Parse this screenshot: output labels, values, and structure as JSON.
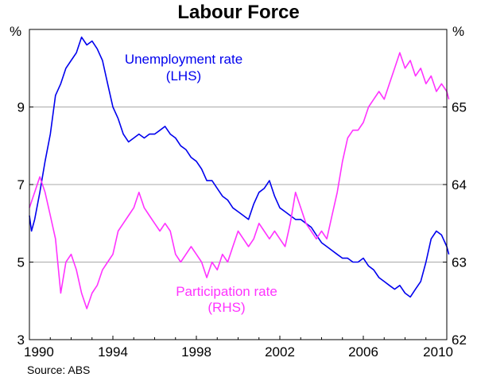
{
  "title": "Labour Force",
  "left_unit": "%",
  "right_unit": "%",
  "source": "Source: ABS",
  "chart_data": {
    "type": "line",
    "title": "Labour Force",
    "xlim": [
      1990,
      2010
    ],
    "x_ticks": [
      "1990",
      "1994",
      "1998",
      "2002",
      "2006",
      "2010"
    ],
    "y_left": {
      "ticks": [
        "3",
        "5",
        "7",
        "9"
      ],
      "ylim": [
        3,
        11
      ],
      "unit": "%"
    },
    "y_right": {
      "ticks": [
        "62",
        "63",
        "64",
        "65"
      ],
      "ylim": [
        62,
        66
      ],
      "unit": "%"
    },
    "grid": true,
    "source": "Source: ABS",
    "series": [
      {
        "name": "Unemployment rate",
        "axis_label": "(LHS)",
        "axis": "left",
        "color": "#0000ee",
        "points": [
          [
            1990.0,
            6.2
          ],
          [
            1990.1,
            5.8
          ],
          [
            1990.25,
            6.1
          ],
          [
            1990.5,
            6.8
          ],
          [
            1990.75,
            7.6
          ],
          [
            1991.0,
            8.3
          ],
          [
            1991.25,
            9.3
          ],
          [
            1991.5,
            9.6
          ],
          [
            1991.75,
            10.0
          ],
          [
            1992.0,
            10.2
          ],
          [
            1992.25,
            10.4
          ],
          [
            1992.5,
            10.8
          ],
          [
            1992.75,
            10.6
          ],
          [
            1993.0,
            10.7
          ],
          [
            1993.25,
            10.5
          ],
          [
            1993.5,
            10.2
          ],
          [
            1993.75,
            9.6
          ],
          [
            1994.0,
            9.0
          ],
          [
            1994.25,
            8.7
          ],
          [
            1994.5,
            8.3
          ],
          [
            1994.75,
            8.1
          ],
          [
            1995.0,
            8.2
          ],
          [
            1995.25,
            8.3
          ],
          [
            1995.5,
            8.2
          ],
          [
            1995.75,
            8.3
          ],
          [
            1996.0,
            8.3
          ],
          [
            1996.25,
            8.4
          ],
          [
            1996.5,
            8.5
          ],
          [
            1996.75,
            8.3
          ],
          [
            1997.0,
            8.2
          ],
          [
            1997.25,
            8.0
          ],
          [
            1997.5,
            7.9
          ],
          [
            1997.75,
            7.7
          ],
          [
            1998.0,
            7.6
          ],
          [
            1998.25,
            7.4
          ],
          [
            1998.5,
            7.1
          ],
          [
            1998.75,
            7.1
          ],
          [
            1999.0,
            6.9
          ],
          [
            1999.25,
            6.7
          ],
          [
            1999.5,
            6.6
          ],
          [
            1999.75,
            6.4
          ],
          [
            2000.0,
            6.3
          ],
          [
            2000.25,
            6.2
          ],
          [
            2000.5,
            6.1
          ],
          [
            2000.75,
            6.5
          ],
          [
            2001.0,
            6.8
          ],
          [
            2001.25,
            6.9
          ],
          [
            2001.5,
            7.1
          ],
          [
            2001.75,
            6.7
          ],
          [
            2002.0,
            6.4
          ],
          [
            2002.25,
            6.3
          ],
          [
            2002.5,
            6.2
          ],
          [
            2002.75,
            6.1
          ],
          [
            2003.0,
            6.1
          ],
          [
            2003.25,
            6.0
          ],
          [
            2003.5,
            5.9
          ],
          [
            2003.75,
            5.7
          ],
          [
            2004.0,
            5.5
          ],
          [
            2004.25,
            5.4
          ],
          [
            2004.5,
            5.3
          ],
          [
            2004.75,
            5.2
          ],
          [
            2005.0,
            5.1
          ],
          [
            2005.25,
            5.1
          ],
          [
            2005.5,
            5.0
          ],
          [
            2005.75,
            5.0
          ],
          [
            2006.0,
            5.1
          ],
          [
            2006.25,
            4.9
          ],
          [
            2006.5,
            4.8
          ],
          [
            2006.75,
            4.6
          ],
          [
            2007.0,
            4.5
          ],
          [
            2007.25,
            4.4
          ],
          [
            2007.5,
            4.3
          ],
          [
            2007.75,
            4.4
          ],
          [
            2008.0,
            4.2
          ],
          [
            2008.25,
            4.1
          ],
          [
            2008.5,
            4.3
          ],
          [
            2008.75,
            4.5
          ],
          [
            2009.0,
            5.0
          ],
          [
            2009.25,
            5.6
          ],
          [
            2009.5,
            5.8
          ],
          [
            2009.75,
            5.7
          ],
          [
            2010.0,
            5.4
          ],
          [
            2010.1,
            5.2
          ]
        ]
      },
      {
        "name": "Participation rate",
        "axis_label": "(RHS)",
        "axis": "right",
        "color": "#ff33ff",
        "points": [
          [
            1990.0,
            63.7
          ],
          [
            1990.25,
            63.9
          ],
          [
            1990.5,
            64.1
          ],
          [
            1990.75,
            63.9
          ],
          [
            1991.0,
            63.6
          ],
          [
            1991.25,
            63.3
          ],
          [
            1991.5,
            62.6
          ],
          [
            1991.75,
            63.0
          ],
          [
            1992.0,
            63.1
          ],
          [
            1992.25,
            62.9
          ],
          [
            1992.5,
            62.6
          ],
          [
            1992.75,
            62.4
          ],
          [
            1993.0,
            62.6
          ],
          [
            1993.25,
            62.7
          ],
          [
            1993.5,
            62.9
          ],
          [
            1993.75,
            63.0
          ],
          [
            1994.0,
            63.1
          ],
          [
            1994.25,
            63.4
          ],
          [
            1994.5,
            63.5
          ],
          [
            1994.75,
            63.6
          ],
          [
            1995.0,
            63.7
          ],
          [
            1995.25,
            63.9
          ],
          [
            1995.5,
            63.7
          ],
          [
            1995.75,
            63.6
          ],
          [
            1996.0,
            63.5
          ],
          [
            1996.25,
            63.4
          ],
          [
            1996.5,
            63.5
          ],
          [
            1996.75,
            63.4
          ],
          [
            1997.0,
            63.1
          ],
          [
            1997.25,
            63.0
          ],
          [
            1997.5,
            63.1
          ],
          [
            1997.75,
            63.2
          ],
          [
            1998.0,
            63.1
          ],
          [
            1998.25,
            63.0
          ],
          [
            1998.5,
            62.8
          ],
          [
            1998.75,
            63.0
          ],
          [
            1999.0,
            62.9
          ],
          [
            1999.25,
            63.1
          ],
          [
            1999.5,
            63.0
          ],
          [
            1999.75,
            63.2
          ],
          [
            2000.0,
            63.4
          ],
          [
            2000.25,
            63.3
          ],
          [
            2000.5,
            63.2
          ],
          [
            2000.75,
            63.3
          ],
          [
            2001.0,
            63.5
          ],
          [
            2001.25,
            63.4
          ],
          [
            2001.5,
            63.3
          ],
          [
            2001.75,
            63.4
          ],
          [
            2002.0,
            63.3
          ],
          [
            2002.25,
            63.2
          ],
          [
            2002.5,
            63.5
          ],
          [
            2002.75,
            63.9
          ],
          [
            2003.0,
            63.7
          ],
          [
            2003.25,
            63.5
          ],
          [
            2003.5,
            63.4
          ],
          [
            2003.75,
            63.3
          ],
          [
            2004.0,
            63.4
          ],
          [
            2004.25,
            63.3
          ],
          [
            2004.5,
            63.6
          ],
          [
            2004.75,
            63.9
          ],
          [
            2005.0,
            64.3
          ],
          [
            2005.25,
            64.6
          ],
          [
            2005.5,
            64.7
          ],
          [
            2005.75,
            64.7
          ],
          [
            2006.0,
            64.8
          ],
          [
            2006.25,
            65.0
          ],
          [
            2006.5,
            65.1
          ],
          [
            2006.75,
            65.2
          ],
          [
            2007.0,
            65.1
          ],
          [
            2007.25,
            65.3
          ],
          [
            2007.5,
            65.5
          ],
          [
            2007.75,
            65.7
          ],
          [
            2008.0,
            65.5
          ],
          [
            2008.25,
            65.6
          ],
          [
            2008.5,
            65.4
          ],
          [
            2008.75,
            65.5
          ],
          [
            2009.0,
            65.3
          ],
          [
            2009.25,
            65.4
          ],
          [
            2009.5,
            65.2
          ],
          [
            2009.75,
            65.3
          ],
          [
            2010.0,
            65.2
          ],
          [
            2010.1,
            65.1
          ]
        ]
      }
    ],
    "annotations": [
      {
        "text": "Unemployment rate",
        "series": 0
      },
      {
        "text": "(LHS)",
        "series": 0
      },
      {
        "text": "Participation rate",
        "series": 1
      },
      {
        "text": "(RHS)",
        "series": 1
      }
    ]
  }
}
